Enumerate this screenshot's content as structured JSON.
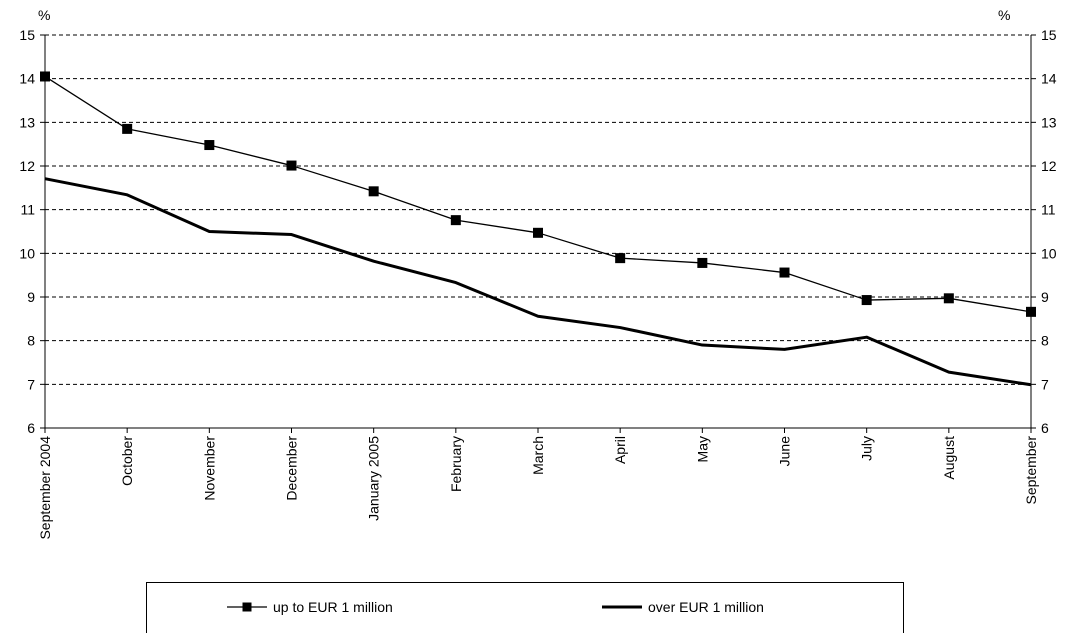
{
  "chart_data": {
    "type": "line",
    "y_unit_left": "%",
    "y_unit_right": "%",
    "ylim": [
      6,
      15
    ],
    "y_ticks": [
      6,
      7,
      8,
      9,
      10,
      11,
      12,
      13,
      14,
      15
    ],
    "grid": "horizontal dashed",
    "legend_position": "bottom",
    "categories": [
      "September 2004",
      "October",
      "November",
      "December",
      "January 2005",
      "February",
      "March",
      "April",
      "May",
      "June",
      "July",
      "August",
      "September"
    ],
    "series": [
      {
        "name": "up to EUR 1 million",
        "marker": "square",
        "color": "#000000",
        "values": [
          14.05,
          12.85,
          12.48,
          12.01,
          11.42,
          10.76,
          10.47,
          9.89,
          9.78,
          9.56,
          8.93,
          8.97,
          8.66
        ]
      },
      {
        "name": "over EUR 1 million",
        "marker": "none",
        "color": "#000000",
        "values": [
          11.71,
          11.34,
          10.5,
          10.43,
          9.82,
          9.33,
          8.56,
          8.3,
          7.9,
          7.8,
          8.08,
          7.28,
          6.99
        ]
      }
    ]
  }
}
